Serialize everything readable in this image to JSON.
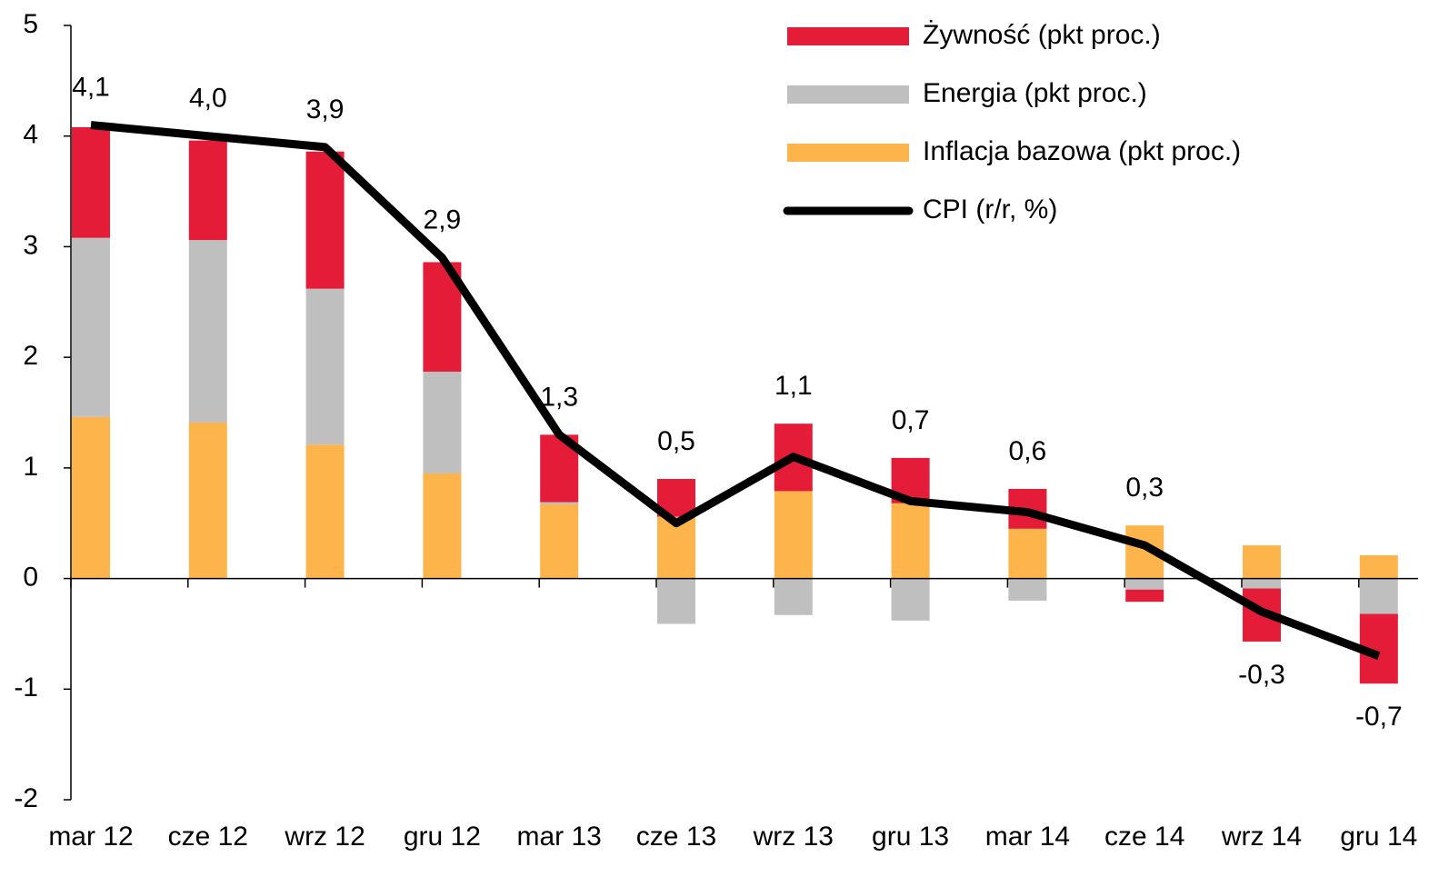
{
  "chart_data": {
    "type": "bar-line",
    "categories": [
      "mar 12",
      "cze 12",
      "wrz 12",
      "gru 12",
      "mar 13",
      "cze 13",
      "wrz 13",
      "gru 13",
      "mar 14",
      "cze 14",
      "wrz 14",
      "gru 14"
    ],
    "series": [
      {
        "name": "Żywność (pkt proc.)",
        "color": "#e41c38",
        "type": "bar",
        "values": [
          1.0,
          0.9,
          1.24,
          0.99,
          0.61,
          0.34,
          0.61,
          0.41,
          0.36,
          -0.11,
          -0.48,
          -0.63
        ]
      },
      {
        "name": "Energia (pkt proc.)",
        "color": "#bfbfbf",
        "type": "bar",
        "values": [
          1.62,
          1.65,
          1.41,
          0.92,
          0.02,
          -0.41,
          -0.33,
          -0.38,
          -0.2,
          -0.1,
          -0.09,
          -0.32
        ]
      },
      {
        "name": "Inflacja bazowa (pkt proc.)",
        "color": "#fdb44b",
        "type": "bar",
        "values": [
          1.46,
          1.41,
          1.21,
          0.95,
          0.67,
          0.56,
          0.79,
          0.68,
          0.45,
          0.48,
          0.3,
          0.21
        ]
      },
      {
        "name": "CPI (r/r, %)",
        "color": "#000000",
        "type": "line",
        "values": [
          4.1,
          4.0,
          3.9,
          2.9,
          1.3,
          0.5,
          1.1,
          0.7,
          0.6,
          0.3,
          -0.3,
          -0.7
        ],
        "value_labels": [
          "4,1",
          "4,0",
          "3,9",
          "2,9",
          "1,3",
          "0,5",
          "1,1",
          "0,7",
          "0,6",
          "0,3",
          "-0,3",
          "-0,7"
        ]
      }
    ],
    "ylim": [
      -2,
      5
    ],
    "yticks": [
      -2,
      -1,
      0,
      1,
      2,
      3,
      4,
      5
    ],
    "legend": "top-right"
  }
}
